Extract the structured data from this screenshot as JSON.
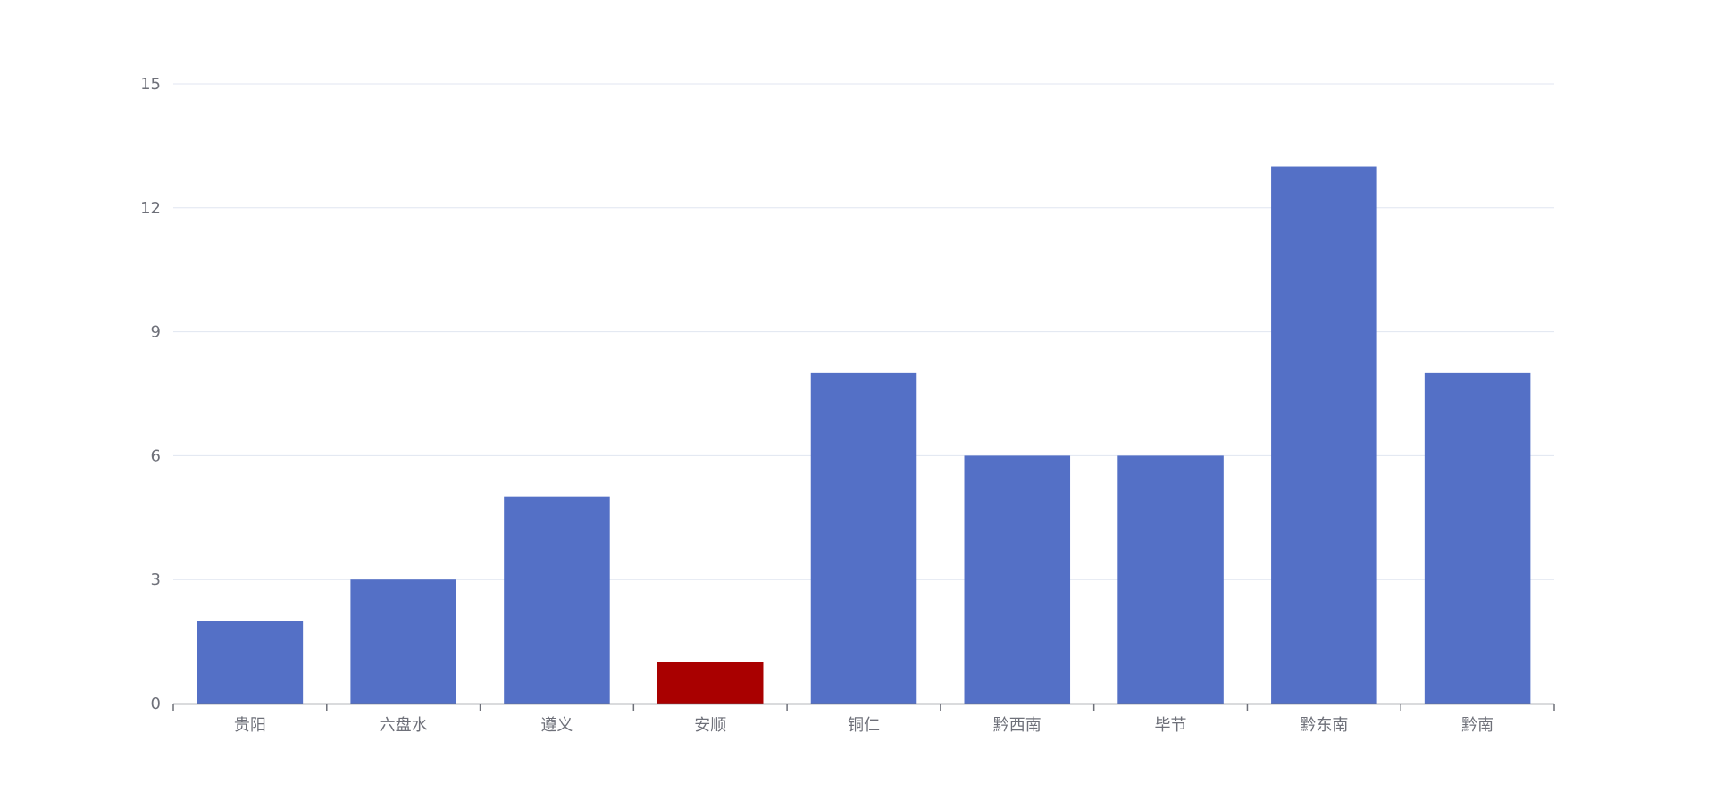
{
  "chart_data": {
    "type": "bar",
    "title": "",
    "xlabel": "",
    "ylabel": "",
    "categories": [
      "贵阳",
      "六盘水",
      "遵义",
      "安顺",
      "铜仁",
      "黔西南",
      "毕节",
      "黔东南",
      "黔南"
    ],
    "values": [
      2,
      3,
      5,
      1,
      8,
      6,
      6,
      13,
      8
    ],
    "highlight_index": 3,
    "ylim": [
      0,
      15
    ],
    "yticks": [
      0,
      3,
      6,
      9,
      12,
      15
    ],
    "grid": true,
    "legend": "none",
    "colors": {
      "bar": "#5470c6",
      "highlight": "#a90000",
      "grid": "#e0e6f1",
      "axis": "#6e7079",
      "label": "#6e7079"
    }
  }
}
